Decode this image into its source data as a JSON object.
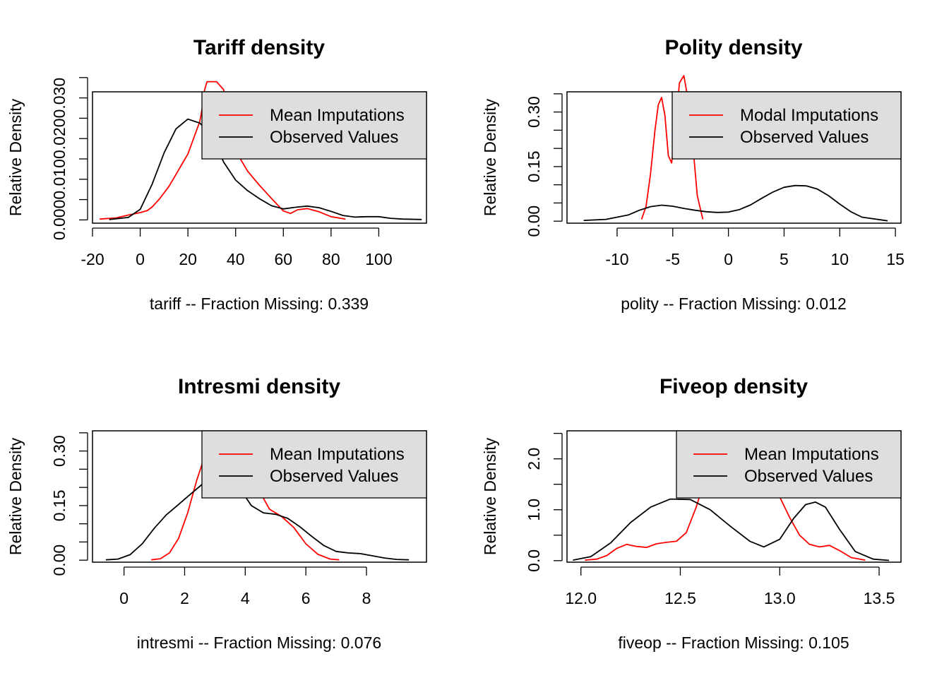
{
  "colors": {
    "imputed": "#ff0000",
    "observed": "#000000",
    "legend_bg": "#dedede",
    "background": "#ffffff"
  },
  "chart_data": [
    {
      "type": "line",
      "title": "Tariff density",
      "xlabel": "tariff   --  Fraction Missing: 0.339",
      "ylabel": "Relative Density",
      "xlim": [
        -20,
        120
      ],
      "ylim": [
        -0.0008,
        0.0315
      ],
      "xticks": [
        -20,
        0,
        20,
        40,
        60,
        80,
        100
      ],
      "xtick_labels": [
        "-20",
        "0",
        "20",
        "40",
        "60",
        "80",
        "100"
      ],
      "yticks": [
        0,
        0.005,
        0.01,
        0.015,
        0.02,
        0.025,
        0.03,
        0.035
      ],
      "ytick_labels": {
        "0": "0.000",
        "0.01": "0.010",
        "0.02": "0.020",
        "0.03": "0.030"
      },
      "legend_position": "top-right",
      "series": [
        {
          "name": "Mean Imputations",
          "color": "#ff0000",
          "x": [
            -17,
            -10,
            -5,
            0,
            3,
            5,
            8,
            12,
            15,
            20,
            25,
            26,
            27,
            28,
            32,
            35,
            38,
            40,
            45,
            50,
            55,
            60,
            63,
            66,
            70,
            75,
            80,
            86
          ],
          "y": [
            0.0002,
            0.0005,
            0.0012,
            0.0018,
            0.0023,
            0.0032,
            0.0051,
            0.0082,
            0.0112,
            0.0162,
            0.0242,
            0.0275,
            0.032,
            0.034,
            0.034,
            0.032,
            0.021,
            0.017,
            0.012,
            0.0085,
            0.0053,
            0.0022,
            0.0016,
            0.0025,
            0.0028,
            0.002,
            0.0008,
            0.0002
          ]
        },
        {
          "name": "Observed Values",
          "color": "#000000",
          "x": [
            -13,
            -5,
            0,
            5,
            10,
            15,
            20,
            25,
            30,
            35,
            40,
            45,
            50,
            55,
            60,
            65,
            70,
            75,
            80,
            85,
            90,
            95,
            100,
            105,
            110,
            118
          ],
          "y": [
            0.0001,
            0.0006,
            0.0026,
            0.0088,
            0.0165,
            0.0224,
            0.0248,
            0.0238,
            0.0208,
            0.0142,
            0.0098,
            0.0072,
            0.0052,
            0.0035,
            0.0027,
            0.0031,
            0.0034,
            0.003,
            0.0021,
            0.0011,
            0.0007,
            0.0008,
            0.0008,
            0.0004,
            0.0002,
            0.0001
          ]
        }
      ]
    },
    {
      "type": "line",
      "title": "Polity density",
      "xlabel": "polity   --  Fraction Missing: 0.012",
      "ylabel": "Relative Density",
      "xlim": [
        -14.5,
        15.5
      ],
      "ylim": [
        -0.0055,
        0.3555
      ],
      "xticks": [
        -10,
        -5,
        0,
        5,
        10,
        15
      ],
      "xtick_labels": [
        "-10",
        "-5",
        "0",
        "5",
        "10",
        "15"
      ],
      "yticks": [
        0,
        0.05,
        0.1,
        0.15,
        0.2,
        0.25,
        0.3,
        0.35
      ],
      "ytick_labels": {
        "0": "0.00",
        "0.15": "0.15",
        "0.3": "0.30"
      },
      "legend_position": "top-right",
      "series": [
        {
          "name": "Modal Imputations",
          "color": "#ff0000",
          "x": [
            -7.8,
            -7.4,
            -7,
            -6.6,
            -6.3,
            -6,
            -5.7,
            -5.4,
            -5.1,
            -4.8,
            -4.4,
            -4,
            -3.6,
            -3.2,
            -2.8,
            -2.3
          ],
          "y": [
            0.005,
            0.04,
            0.13,
            0.25,
            0.32,
            0.34,
            0.29,
            0.18,
            0.16,
            0.24,
            0.38,
            0.4,
            0.33,
            0.21,
            0.07,
            0.005
          ]
        },
        {
          "name": "Observed Values",
          "color": "#000000",
          "x": [
            -13,
            -11,
            -9,
            -8,
            -7,
            -6,
            -5,
            -4,
            -3,
            -2,
            -1,
            0,
            1,
            2,
            3,
            4,
            5,
            6,
            7,
            8,
            9,
            10,
            11,
            12,
            14.3
          ],
          "y": [
            0.002,
            0.005,
            0.017,
            0.03,
            0.04,
            0.044,
            0.041,
            0.035,
            0.03,
            0.026,
            0.024,
            0.025,
            0.032,
            0.045,
            0.063,
            0.08,
            0.093,
            0.098,
            0.097,
            0.088,
            0.07,
            0.047,
            0.026,
            0.011,
            0.001
          ]
        }
      ]
    },
    {
      "type": "line",
      "title": "Intresmi density",
      "xlabel": "intresmi   --  Fraction Missing: 0.076",
      "ylabel": "Relative Density",
      "xlim": [
        -1.04,
        9.98
      ],
      "ylim": [
        -0.0055,
        0.3555
      ],
      "xticks": [
        0,
        2,
        4,
        6,
        8
      ],
      "xtick_labels": [
        "0",
        "2",
        "4",
        "6",
        "8"
      ],
      "yticks": [
        0,
        0.05,
        0.1,
        0.15,
        0.2,
        0.25,
        0.3,
        0.35
      ],
      "ytick_labels": {
        "0": "0.00",
        "0.15": "0.15",
        "0.3": "0.30"
      },
      "legend_position": "top-right",
      "series": [
        {
          "name": "Mean Imputations",
          "color": "#ff0000",
          "x": [
            0.9,
            1.2,
            1.5,
            1.8,
            2.1,
            2.4,
            2.6,
            2.8,
            3.0,
            3.3,
            3.6,
            4.0,
            4.4,
            4.8,
            5.2,
            5.6,
            6.0,
            6.4,
            6.8,
            7.1
          ],
          "y": [
            0.001,
            0.004,
            0.02,
            0.06,
            0.13,
            0.22,
            0.27,
            0.3,
            0.32,
            0.32,
            0.3,
            0.26,
            0.2,
            0.14,
            0.12,
            0.09,
            0.045,
            0.016,
            0.003,
            0.001
          ]
        },
        {
          "name": "Observed Values",
          "color": "#000000",
          "x": [
            -0.6,
            -0.2,
            0.2,
            0.6,
            1.0,
            1.4,
            1.8,
            2.2,
            2.6,
            3.0,
            3.4,
            3.8,
            4.2,
            4.6,
            5.0,
            5.4,
            5.8,
            6.2,
            6.6,
            7.0,
            7.4,
            7.8,
            8.2,
            8.6,
            9.0,
            9.4
          ],
          "y": [
            0.001,
            0.003,
            0.015,
            0.045,
            0.088,
            0.125,
            0.153,
            0.182,
            0.21,
            0.232,
            0.23,
            0.2,
            0.15,
            0.13,
            0.126,
            0.115,
            0.092,
            0.065,
            0.04,
            0.024,
            0.02,
            0.018,
            0.012,
            0.006,
            0.002,
            0.001
          ]
        }
      ]
    },
    {
      "type": "line",
      "title": "Fiveop density",
      "xlabel": "fiveop   --  Fraction Missing: 0.105",
      "ylabel": "Relative Density",
      "xlim": [
        11.93,
        13.61
      ],
      "ylim": [
        -0.03,
        2.55
      ],
      "xticks": [
        12.0,
        12.5,
        13.0,
        13.5
      ],
      "xtick_labels": [
        "12.0",
        "12.5",
        "13.0",
        "13.5"
      ],
      "yticks": [
        0,
        0.5,
        1.0,
        1.5,
        2.0,
        2.5
      ],
      "ytick_labels": {
        "0": "0.0",
        "1": "1.0",
        "2": "2.0"
      },
      "legend_position": "top-right",
      "series": [
        {
          "name": "Mean Imputations",
          "color": "#ff0000",
          "x": [
            12.02,
            12.08,
            12.13,
            12.18,
            12.23,
            12.28,
            12.33,
            12.38,
            12.43,
            12.48,
            12.53,
            12.58,
            12.62,
            12.66,
            12.7,
            12.8,
            12.9,
            12.95,
            13.0,
            13.05,
            13.1,
            13.15,
            13.2,
            13.25,
            13.3,
            13.36,
            13.43
          ],
          "y": [
            0.01,
            0.03,
            0.1,
            0.24,
            0.32,
            0.28,
            0.26,
            0.33,
            0.36,
            0.38,
            0.55,
            1.05,
            1.55,
            2.0,
            2.3,
            2.4,
            2.1,
            1.7,
            1.25,
            0.85,
            0.5,
            0.32,
            0.27,
            0.3,
            0.2,
            0.06,
            0.01
          ]
        },
        {
          "name": "Observed Values",
          "color": "#000000",
          "x": [
            11.96,
            12.05,
            12.15,
            12.25,
            12.35,
            12.45,
            12.55,
            12.65,
            12.75,
            12.85,
            12.92,
            13.0,
            13.07,
            13.13,
            13.18,
            13.23,
            13.3,
            13.38,
            13.47,
            13.55
          ],
          "y": [
            0.01,
            0.08,
            0.35,
            0.75,
            1.05,
            1.21,
            1.2,
            1.0,
            0.68,
            0.38,
            0.27,
            0.42,
            0.83,
            1.1,
            1.15,
            1.05,
            0.62,
            0.18,
            0.03,
            0.005
          ]
        }
      ]
    }
  ]
}
